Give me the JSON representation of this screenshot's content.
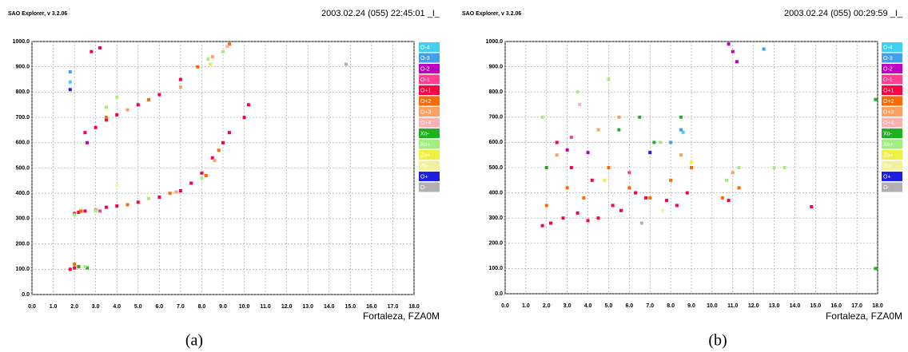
{
  "chart_data": [
    {
      "type": "scatter",
      "software": "SAO Explorer, v 3.2.06",
      "title": "2003.02.24 (055) 22:45:01 _I_",
      "station": "Fortaleza, FZA0M",
      "caption": "(a)",
      "xlim": [
        0,
        18
      ],
      "ylim": [
        0,
        1000
      ],
      "xticks": [
        {
          "value": 0,
          "label": "0.0"
        },
        {
          "value": 1,
          "label": "1.0"
        },
        {
          "value": 2,
          "label": "2.0"
        },
        {
          "value": 3,
          "label": "3.0"
        },
        {
          "value": 4,
          "label": "4.0"
        },
        {
          "value": 5,
          "label": "5.0"
        },
        {
          "value": 6,
          "label": "6.0"
        },
        {
          "value": 7,
          "label": "7.0"
        },
        {
          "value": 8,
          "label": "8.0"
        },
        {
          "value": 9,
          "label": "9.0"
        },
        {
          "value": 10,
          "label": "10.0"
        },
        {
          "value": 11,
          "label": "11.0"
        },
        {
          "value": 12,
          "label": "12.0"
        },
        {
          "value": 13,
          "label": "13.0"
        },
        {
          "value": 14,
          "label": "14.0"
        },
        {
          "value": 15,
          "label": "15.0"
        },
        {
          "value": 16,
          "label": "16.0"
        },
        {
          "value": 17,
          "label": "17.0"
        },
        {
          "value": 18,
          "label": "18.0"
        }
      ],
      "yticks": [
        {
          "value": 0,
          "label": "0.0"
        },
        {
          "value": 100,
          "label": "100.0"
        },
        {
          "value": 200,
          "label": "200.0"
        },
        {
          "value": 300,
          "label": "300.0"
        },
        {
          "value": 400,
          "label": "400.0"
        },
        {
          "value": 500,
          "label": "500.0"
        },
        {
          "value": 600,
          "label": "600.0"
        },
        {
          "value": 700,
          "label": "700.0"
        },
        {
          "value": 800,
          "label": "800.0"
        },
        {
          "value": 900,
          "label": "900.0"
        },
        {
          "value": 1000,
          "label": "1000.0"
        }
      ],
      "grid": true,
      "series": [
        {
          "name": "O-4",
          "color": "#40d0f0",
          "x": [
            1.8
          ],
          "values": [
            840
          ]
        },
        {
          "name": "O-3",
          "color": "#40a0f0",
          "x": [
            1.8
          ],
          "values": [
            880
          ]
        },
        {
          "name": "O-2",
          "color": "#c000c0",
          "x": [
            2.6
          ],
          "values": [
            600
          ]
        },
        {
          "name": "O-1",
          "color": "#ff4090",
          "x": [
            3.2
          ],
          "values": [
            330
          ]
        },
        {
          "name": "O+1",
          "color": "#ff0040",
          "x": [
            2.0,
            2.2,
            2.5,
            3.0,
            3.5,
            4.0,
            5.0,
            6.0,
            7.0,
            7.5,
            8.0,
            8.5,
            9.0,
            9.3,
            2.5,
            3.0,
            3.5,
            4.0,
            5.0,
            6.0,
            7.0,
            2.8,
            3.2,
            1.8,
            2.0,
            2.2,
            10.2,
            10.0
          ],
          "values": [
            320,
            325,
            330,
            335,
            345,
            350,
            365,
            385,
            410,
            440,
            480,
            540,
            600,
            640,
            640,
            660,
            690,
            710,
            750,
            790,
            850,
            960,
            975,
            100,
            105,
            110,
            750,
            700
          ]
        },
        {
          "name": "O+2",
          "color": "#ff6a00",
          "x": [
            2.3,
            4.5,
            6.5,
            8.2,
            8.8,
            3.5,
            5.5,
            7.8,
            9.3,
            2.0
          ],
          "values": [
            330,
            355,
            400,
            470,
            570,
            700,
            770,
            900,
            990,
            120
          ]
        },
        {
          "name": "O+3",
          "color": "#ffa060",
          "x": [
            3.0,
            6.8,
            8.6,
            4.5,
            7.0,
            8.5
          ],
          "values": [
            335,
            405,
            530,
            730,
            820,
            940
          ]
        },
        {
          "name": "O+4",
          "color": "#ffb0b0",
          "x": [
            9.2
          ],
          "values": [
            980
          ]
        },
        {
          "name": "Xo-",
          "color": "#20b020",
          "x": [
            2.2,
            2.6
          ],
          "values": [
            110,
            105
          ]
        },
        {
          "name": "Xo+",
          "color": "#a0f080",
          "x": [
            2.0,
            3.0,
            5.5,
            8.0,
            3.5,
            4.0,
            8.3,
            9.0,
            2.5
          ],
          "values": [
            315,
            330,
            380,
            460,
            740,
            780,
            930,
            960,
            110
          ]
        },
        {
          "name": "Zo+",
          "color": "#f0f040",
          "x": [
            8.4
          ],
          "values": [
            910
          ]
        },
        {
          "name": "Zo-",
          "color": "#f0f0a0",
          "x": [
            4.0
          ],
          "values": [
            430
          ]
        },
        {
          "name": "O+",
          "color": "#2020e0",
          "x": [
            1.8
          ],
          "values": [
            810
          ]
        },
        {
          "name": "O-",
          "color": "#b0b0b0",
          "x": [
            14.8
          ],
          "values": [
            910
          ]
        }
      ]
    },
    {
      "type": "scatter",
      "software": "SAO Explorer, v 3.2.06",
      "title": "2003.02.24 (055) 00:29:59 _I_",
      "station": "Fortaleza, FZA0M",
      "caption": "(b)",
      "xlim": [
        0,
        18
      ],
      "ylim": [
        0,
        1000
      ],
      "xticks": [
        {
          "value": 0,
          "label": "0.0"
        },
        {
          "value": 1,
          "label": "1.0"
        },
        {
          "value": 2,
          "label": "2.0"
        },
        {
          "value": 3,
          "label": "3.0"
        },
        {
          "value": 4,
          "label": "4.0"
        },
        {
          "value": 5,
          "label": "5.0"
        },
        {
          "value": 6,
          "label": "6.0"
        },
        {
          "value": 7,
          "label": "7.0"
        },
        {
          "value": 8,
          "label": "8.0"
        },
        {
          "value": 9,
          "label": "9.0"
        },
        {
          "value": 10,
          "label": "10.0"
        },
        {
          "value": 11,
          "label": "11.0"
        },
        {
          "value": 12,
          "label": "12.0"
        },
        {
          "value": 13,
          "label": "13.0"
        },
        {
          "value": 14,
          "label": "14.0"
        },
        {
          "value": 15,
          "label": "15.0"
        },
        {
          "value": 16,
          "label": "16.0"
        },
        {
          "value": 17,
          "label": "17.0"
        },
        {
          "value": 18,
          "label": "18.0"
        }
      ],
      "yticks": [
        {
          "value": 0,
          "label": "0.0"
        },
        {
          "value": 100,
          "label": "100.0"
        },
        {
          "value": 200,
          "label": "200.0"
        },
        {
          "value": 300,
          "label": "300.0"
        },
        {
          "value": 400,
          "label": "400.0"
        },
        {
          "value": 500,
          "label": "500.0"
        },
        {
          "value": 600,
          "label": "600.0"
        },
        {
          "value": 700,
          "label": "700.0"
        },
        {
          "value": 800,
          "label": "800.0"
        },
        {
          "value": 900,
          "label": "900.0"
        },
        {
          "value": 1000,
          "label": "1000.0"
        }
      ],
      "grid": true,
      "series": [
        {
          "name": "O-4",
          "color": "#40d0f0",
          "x": [
            8.6
          ],
          "values": [
            640
          ]
        },
        {
          "name": "O-3",
          "color": "#40a0f0",
          "x": [
            8.5,
            8.0,
            12.5
          ],
          "values": [
            650,
            600,
            970
          ]
        },
        {
          "name": "O-2",
          "color": "#c000c0",
          "x": [
            10.8,
            11.2,
            11.0,
            3.0,
            4.0
          ],
          "values": [
            990,
            920,
            960,
            570,
            560
          ]
        },
        {
          "name": "O-1",
          "color": "#ff4090",
          "x": [
            3.2,
            6.0
          ],
          "values": [
            620,
            480
          ]
        },
        {
          "name": "O+1",
          "color": "#ff0040",
          "x": [
            1.8,
            2.2,
            2.8,
            3.5,
            4.0,
            4.5,
            5.2,
            5.6,
            6.3,
            6.8,
            7.8,
            8.3,
            8.8,
            10.8,
            14.8,
            2.5,
            3.2,
            4.2
          ],
          "values": [
            270,
            280,
            300,
            320,
            290,
            300,
            350,
            330,
            400,
            380,
            370,
            350,
            400,
            370,
            345,
            600,
            500,
            450
          ]
        },
        {
          "name": "O+2",
          "color": "#ff6a00",
          "x": [
            2.0,
            3.0,
            3.8,
            5.0,
            6.0,
            7.0,
            8.0,
            9.0,
            10.5,
            11.3
          ],
          "values": [
            350,
            420,
            380,
            500,
            420,
            380,
            450,
            500,
            380,
            420
          ]
        },
        {
          "name": "O+3",
          "color": "#ffa060",
          "x": [
            2.5,
            4.5,
            5.5,
            8.5,
            11.0
          ],
          "values": [
            550,
            650,
            700,
            550,
            480
          ]
        },
        {
          "name": "O+4",
          "color": "#ffb0b0",
          "x": [
            3.6
          ],
          "values": [
            750
          ]
        },
        {
          "name": "Xo-",
          "color": "#20b020",
          "x": [
            2.0,
            5.5,
            6.5,
            7.2,
            8.5,
            17.9,
            17.9
          ],
          "values": [
            500,
            650,
            700,
            600,
            700,
            770,
            100
          ]
        },
        {
          "name": "Xo+",
          "color": "#a0f080",
          "x": [
            1.8,
            3.5,
            5.0,
            7.5,
            10.7,
            11.3,
            13.0,
            13.5
          ],
          "values": [
            700,
            800,
            850,
            600,
            450,
            500,
            500,
            500
          ]
        },
        {
          "name": "Zo+",
          "color": "#f0f040",
          "x": [
            4.8,
            9.0
          ],
          "values": [
            450,
            520
          ]
        },
        {
          "name": "Zo-",
          "color": "#f0f0a0",
          "x": [
            7.6
          ],
          "values": [
            330
          ]
        },
        {
          "name": "O+",
          "color": "#2020e0",
          "x": [
            7.0
          ],
          "values": [
            560
          ]
        },
        {
          "name": "O-",
          "color": "#b0b0b0",
          "x": [
            6.6
          ],
          "values": [
            280
          ]
        }
      ]
    }
  ]
}
